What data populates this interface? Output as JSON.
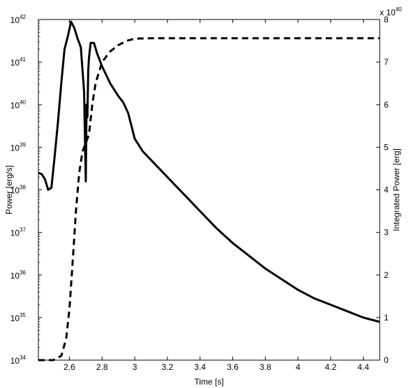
{
  "chart_data": {
    "type": "line",
    "title": "",
    "xlabel": "Time [s]",
    "ylabel_left": "Power [erg/s]",
    "ylabel_right": "Integrated Power [erg]",
    "right_axis_multiplier": "x 10",
    "right_axis_multiplier_exponent": "40",
    "xlim": [
      2.41,
      4.5
    ],
    "ylim_left_log10": [
      34,
      42
    ],
    "ylim_right": [
      0,
      8
    ],
    "x_ticks": [
      "2.6",
      "2.8",
      "3",
      "3.2",
      "3.4",
      "3.6",
      "3.8",
      "4",
      "4.2",
      "4.4"
    ],
    "x_tick_values": [
      2.6,
      2.8,
      3.0,
      3.2,
      3.4,
      3.6,
      3.8,
      4.0,
      4.2,
      4.4
    ],
    "y_left_ticks": [
      {
        "base": "10",
        "exp": "34",
        "log": 34
      },
      {
        "base": "10",
        "exp": "35",
        "log": 35
      },
      {
        "base": "10",
        "exp": "36",
        "log": 36
      },
      {
        "base": "10",
        "exp": "37",
        "log": 37
      },
      {
        "base": "10",
        "exp": "38",
        "log": 38
      },
      {
        "base": "10",
        "exp": "39",
        "log": 39
      },
      {
        "base": "10",
        "exp": "40",
        "log": 40
      },
      {
        "base": "10",
        "exp": "41",
        "log": 41
      },
      {
        "base": "10",
        "exp": "42",
        "log": 42
      }
    ],
    "y_right_ticks": [
      "0",
      "1",
      "2",
      "3",
      "4",
      "5",
      "6",
      "7",
      "8"
    ],
    "y_right_tick_values": [
      0,
      1,
      2,
      3,
      4,
      5,
      6,
      7,
      8
    ],
    "series": [
      {
        "style": "solid",
        "axis": "left",
        "scale": "log10",
        "x": [
          2.41,
          2.43,
          2.45,
          2.47,
          2.49,
          2.51,
          2.53,
          2.55,
          2.57,
          2.59,
          2.61,
          2.63,
          2.65,
          2.67,
          2.69,
          2.7,
          2.705,
          2.71,
          2.715,
          2.72,
          2.73,
          2.75,
          2.77,
          2.8,
          2.85,
          2.9,
          2.93,
          2.96,
          3.0,
          3.05,
          3.1,
          3.2,
          3.3,
          3.4,
          3.5,
          3.6,
          3.7,
          3.8,
          3.9,
          4.0,
          4.1,
          4.2,
          4.3,
          4.4,
          4.5
        ],
        "y": [
          38.4,
          38.37,
          38.25,
          38.0,
          38.05,
          38.8,
          39.6,
          40.5,
          41.3,
          41.6,
          41.95,
          41.8,
          41.55,
          41.35,
          40.3,
          38.2,
          40.0,
          39.7,
          40.8,
          41.1,
          41.45,
          41.45,
          41.2,
          40.9,
          40.5,
          40.2,
          40.05,
          39.8,
          39.2,
          38.9,
          38.7,
          38.3,
          37.9,
          37.5,
          37.1,
          36.75,
          36.45,
          36.15,
          35.9,
          35.65,
          35.45,
          35.3,
          35.15,
          35.0,
          34.9
        ]
      },
      {
        "style": "dashed",
        "axis": "right",
        "scale": "linear",
        "x": [
          2.41,
          2.5,
          2.55,
          2.58,
          2.6,
          2.62,
          2.64,
          2.66,
          2.68,
          2.7,
          2.72,
          2.74,
          2.76,
          2.8,
          2.85,
          2.9,
          2.95,
          3.0,
          3.1,
          3.2,
          3.5,
          4.0,
          4.5
        ],
        "y": [
          0.0,
          0.0,
          0.1,
          0.5,
          1.2,
          2.3,
          3.5,
          4.4,
          4.9,
          5.1,
          5.3,
          6.0,
          6.5,
          7.0,
          7.25,
          7.4,
          7.5,
          7.55,
          7.56,
          7.56,
          7.56,
          7.56,
          7.56
        ]
      }
    ]
  }
}
